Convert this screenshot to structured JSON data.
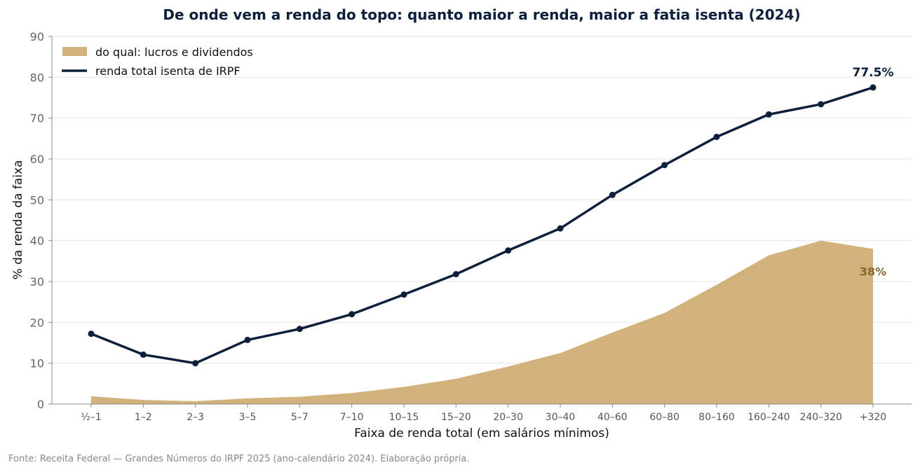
{
  "chart_data": {
    "type": "line",
    "title": "De onde vem a renda do topo: quanto maior a renda, maior a fatia isenta (2024)",
    "xlabel": "Faixa de renda total (em salários mínimos)",
    "ylabel": "% da renda da faixa",
    "ylim": [
      0,
      90
    ],
    "yticks": [
      0,
      10,
      20,
      30,
      40,
      50,
      60,
      70,
      80,
      90
    ],
    "grid": "horizontal",
    "legend_position": "top-left",
    "categories": [
      "½–1",
      "1–2",
      "2–3",
      "3–5",
      "5–7",
      "7–10",
      "10–15",
      "15–20",
      "20–30",
      "30–40",
      "40–60",
      "60–80",
      "80–160",
      "160–240",
      "240–320",
      "+320"
    ],
    "series": [
      {
        "name": "do qual: lucros e dividendos",
        "kind": "area",
        "color": "#d1b27c",
        "values": [
          1.9,
          1.0,
          0.7,
          1.4,
          1.8,
          2.7,
          4.2,
          6.2,
          9.2,
          12.5,
          17.5,
          22.3,
          29.2,
          36.4,
          40.0,
          38.0
        ]
      },
      {
        "name": "renda total isenta de IRPF",
        "kind": "line",
        "color": "#0d1f3a",
        "values": [
          17.2,
          12.1,
          10.0,
          15.7,
          18.4,
          22.0,
          26.8,
          31.8,
          37.6,
          43.0,
          51.2,
          58.5,
          65.4,
          70.9,
          73.4,
          77.5
        ]
      }
    ],
    "annotations": {
      "line_end_label": "77.5%",
      "area_end_label": "38%",
      "line_color": "#0d1f3a",
      "area_label_color": "#8a6a2b"
    },
    "source": "Fonte: Receita Federal — Grandes Números do IRPF 2025 (ano-calendário 2024). Elaboração própria."
  }
}
